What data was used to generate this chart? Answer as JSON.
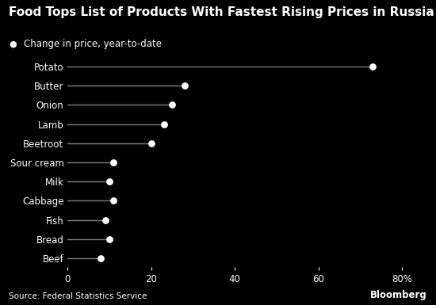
{
  "title": "Food Tops List of Products With Fastest Rising Prices in Russia",
  "legend_label": "Change in price, year-to-date",
  "categories": [
    "Potato",
    "Butter",
    "Onion",
    "Lamb",
    "Beetroot",
    "Sour cream",
    "Milk",
    "Cabbage",
    "Fish",
    "Bread",
    "Beef"
  ],
  "values": [
    73,
    28,
    25,
    23,
    20,
    11,
    10,
    11,
    9,
    10,
    8
  ],
  "source": "Source: Federal Statistics Service",
  "bloomberg": "Bloomberg",
  "xlim": [
    0,
    85
  ],
  "xticks": [
    0,
    20,
    40,
    60,
    80
  ],
  "xtick_labels": [
    "0",
    "20",
    "40",
    "60",
    "80%"
  ],
  "background_color": "#000000",
  "text_color": "#ffffff",
  "line_color": "#808080",
  "dot_color": "#ffffff",
  "title_color": "#ffffff",
  "title_fontsize": 11.0,
  "tick_fontsize": 8.5,
  "label_fontsize": 8.5,
  "source_fontsize": 7.5,
  "bloomberg_fontsize": 8.5
}
